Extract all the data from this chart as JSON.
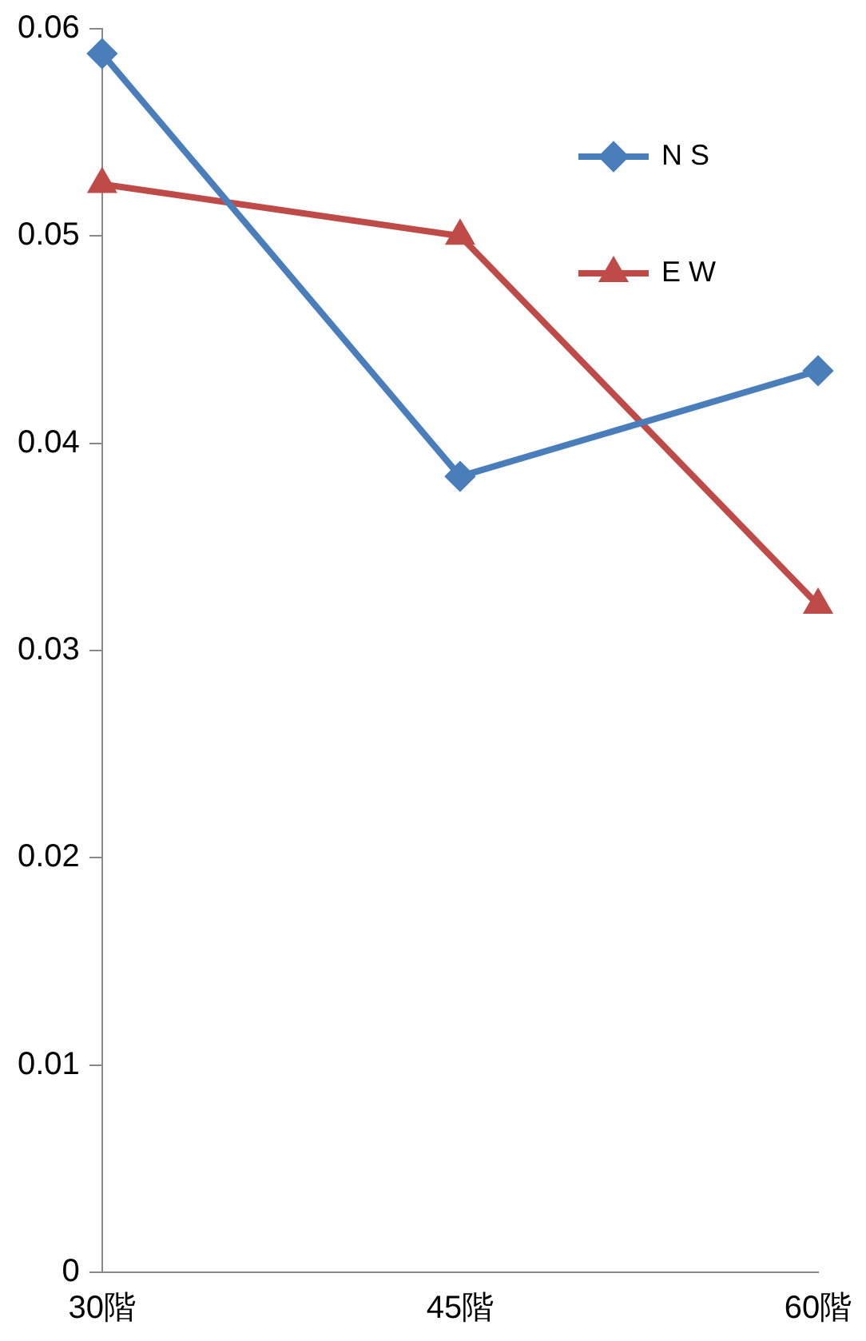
{
  "chart_data": {
    "type": "line",
    "categories": [
      "30階",
      "45階",
      "60階"
    ],
    "series": [
      {
        "name": "N S",
        "color": "#4a7ebb",
        "marker": "diamond",
        "values": [
          0.0588,
          0.0384,
          0.0435
        ]
      },
      {
        "name": "E W",
        "color": "#be4b48",
        "marker": "triangle",
        "values": [
          0.0525,
          0.05,
          0.0322
        ]
      }
    ],
    "ylim": [
      0,
      0.06
    ],
    "yticks": [
      0,
      0.01,
      0.02,
      0.03,
      0.04,
      0.05,
      0.06
    ],
    "grid": false,
    "legend": "top right",
    "line_style": "solid"
  }
}
